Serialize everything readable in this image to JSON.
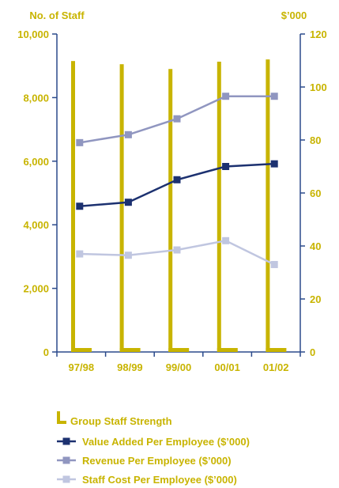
{
  "chart_data": {
    "type": "bar+line",
    "left_axis": {
      "title": "No. of Staff",
      "ylim": [
        0,
        10000
      ],
      "ticks": [
        0,
        2000,
        4000,
        6000,
        8000,
        10000
      ],
      "tick_labels": [
        "0",
        "2,000",
        "4,000",
        "6,000",
        "8,000",
        "10,000"
      ]
    },
    "right_axis": {
      "title": "$’000",
      "ylim": [
        0,
        120
      ],
      "ticks": [
        0,
        20,
        40,
        60,
        80,
        100,
        120
      ],
      "tick_labels": [
        "0",
        "20",
        "40",
        "60",
        "80",
        "100",
        "120"
      ]
    },
    "categories": [
      "97/98",
      "98/99",
      "99/00",
      "00/01",
      "01/02"
    ],
    "bar_series": {
      "name": "Group Staff Strength",
      "axis": "left",
      "values": [
        9150,
        9050,
        8900,
        9130,
        9200
      ]
    },
    "line_series": [
      {
        "name": "Value Added Per Employee ($’000)",
        "axis": "right",
        "values": [
          55,
          56.5,
          65,
          70,
          71
        ]
      },
      {
        "name": "Revenue Per Employee ($’000)",
        "axis": "right",
        "values": [
          79,
          82,
          88,
          96.5,
          96.5
        ]
      },
      {
        "name": "Staff Cost Per Employee ($’000)",
        "axis": "right",
        "values": [
          37,
          36.5,
          38.5,
          42,
          33
        ]
      }
    ],
    "colors": {
      "axis": "#2b4a8c",
      "label": "#c8b400",
      "bar": "#c8b400",
      "value_added": "#1c3170",
      "revenue": "#9096c0",
      "staff_cost": "#c0c6e0"
    },
    "grid": false,
    "legend_position": "bottom"
  }
}
